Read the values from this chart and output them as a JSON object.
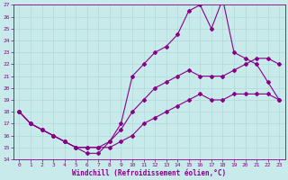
{
  "title": "",
  "xlabel": "Windchill (Refroidissement éolien,°C)",
  "ylabel": "",
  "bg_color": "#c8eaea",
  "grid_color": "#b0d8d8",
  "line_color": "#880088",
  "xlim": [
    -0.5,
    23.5
  ],
  "ylim": [
    14,
    27
  ],
  "xticks": [
    0,
    1,
    2,
    3,
    4,
    5,
    6,
    7,
    8,
    9,
    10,
    11,
    12,
    13,
    14,
    15,
    16,
    17,
    18,
    19,
    20,
    21,
    22,
    23
  ],
  "yticks": [
    14,
    15,
    16,
    17,
    18,
    19,
    20,
    21,
    22,
    23,
    24,
    25,
    26,
    27
  ],
  "line1_x": [
    0,
    1,
    2,
    3,
    4,
    5,
    6,
    7,
    8,
    9,
    10,
    11,
    12,
    13,
    14,
    15,
    16,
    17,
    18,
    19,
    20,
    21,
    22,
    23
  ],
  "line1_y": [
    18,
    17,
    16.5,
    16,
    15.5,
    15,
    15,
    15,
    15,
    15.5,
    16,
    17,
    17.5,
    18,
    18.5,
    19,
    19.5,
    19,
    19,
    19.5,
    19.5,
    19.5,
    19.5,
    19
  ],
  "line2_x": [
    0,
    1,
    2,
    3,
    4,
    5,
    6,
    7,
    8,
    9,
    10,
    11,
    12,
    13,
    14,
    15,
    16,
    17,
    18,
    19,
    20,
    21,
    22,
    23
  ],
  "line2_y": [
    18,
    17,
    16.5,
    16,
    15.5,
    15,
    15,
    15,
    15.5,
    16.5,
    18,
    19,
    20,
    20.5,
    21,
    21.5,
    21,
    21,
    21,
    21.5,
    22,
    22.5,
    22.5,
    22
  ],
  "line3_x": [
    0,
    1,
    2,
    3,
    4,
    5,
    6,
    7,
    8,
    9,
    10,
    11,
    12,
    13,
    14,
    15,
    16,
    17,
    18,
    19,
    20,
    21,
    22,
    23
  ],
  "line3_y": [
    18,
    17,
    16.5,
    16,
    15.5,
    15,
    14.5,
    14.5,
    15.5,
    17,
    21,
    22,
    23,
    23.5,
    24.5,
    26.5,
    27,
    25,
    27.5,
    23,
    22.5,
    22,
    20.5,
    19
  ],
  "marker": "D",
  "marker_size": 2,
  "line_width": 0.8
}
